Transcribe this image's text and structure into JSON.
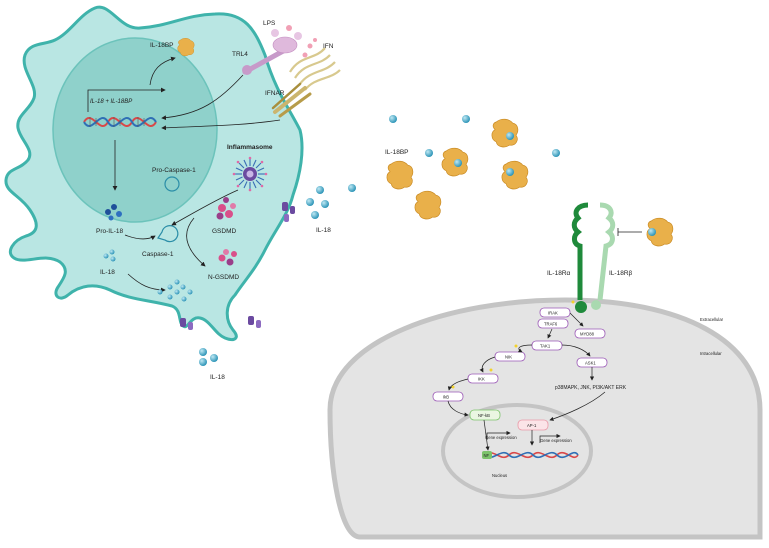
{
  "labels": {
    "il18bp_top": "IL-18BP",
    "trl4": "TRL4",
    "lps": "LPS",
    "ifn": "IFN",
    "ifnar": "IFNAR",
    "gene_text": "IL-18 + IL-18BP",
    "inflammasome": "Inflammasome",
    "pro_caspase": "Pro-Caspase-1",
    "caspase": "Caspase-1",
    "gsdmd": "GSDMD",
    "n_gsdmd": "N-GSDMD",
    "pro_il18": "Pro-IL-18",
    "il18_inside": "IL-18",
    "il18_mid": "IL-18",
    "il18_bottom": "IL-18",
    "il18bp_mid": "IL-18BP",
    "il18r_alpha": "IL-18Rα",
    "il18r_beta": "IL-18Rβ",
    "extracellular": "Extracellular",
    "intracellular": "Intracellular",
    "irak": "IRAK",
    "traf6": "TRAF6",
    "myd88": "MYD88",
    "tak1": "TAK1",
    "nik": "NIK",
    "ask1": "ASK1",
    "ikk": "IKK",
    "ikb": "IkB",
    "mapk": "p38MAPK, JNK, PI3K/AKT ERK",
    "nfkb": "NF-kB",
    "ap1": "AP-1",
    "gene_expr_1": "Gene expression",
    "gene_expr_2": "Gene expression",
    "nucleus": "Nucleus",
    "nf_small": "NF"
  },
  "colors": {
    "cell_fill": "#b9e6e3",
    "cell_stroke": "#3fb3ab",
    "nucleus_fill": "#8fd1cb",
    "il18": "#4bb2cf",
    "il18bp": "#e9b04a",
    "receptor_alpha": "#1f8a3b",
    "receptor_beta": "#a9d9b0",
    "purple_box": "#9b59b6",
    "green_box": "#7cc36b",
    "pink_box": "#e89aa8",
    "dna_red": "#d94848",
    "dna_blue": "#2f6fb5",
    "target_cell": "#e4e4e4"
  },
  "icons": [
    "lps-icon",
    "ifn-icon",
    "inflammasome-icon",
    "dna-icon",
    "il18bp-icon",
    "il18-icon",
    "receptor-icon",
    "gsdmd-icon"
  ]
}
